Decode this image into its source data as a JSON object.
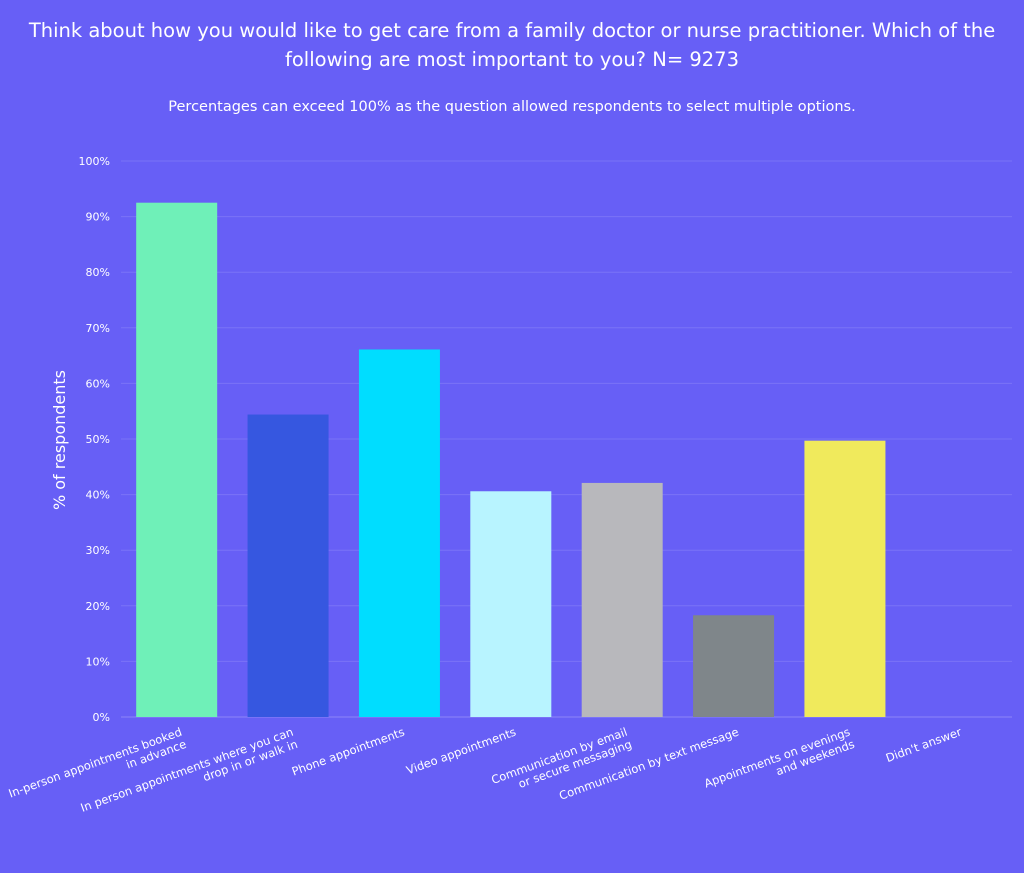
{
  "chart_data": {
    "type": "bar",
    "title": "Think about how you would like to get care from a family doctor or nurse practitioner. Which of the following are most important to you? N= 9273",
    "subtitle": "Percentages can exceed 100% as the question allowed respondents to select multiple options.",
    "xlabel": "",
    "ylabel": "% of respondents",
    "ylim": [
      0,
      100
    ],
    "yticks": [
      "0%",
      "10%",
      "20%",
      "30%",
      "40%",
      "50%",
      "60%",
      "70%",
      "80%",
      "90%",
      "100%"
    ],
    "grid": true,
    "legend": "none",
    "categories": [
      [
        "In-person appointments booked",
        "in advance"
      ],
      [
        "In person appointments where you can",
        "drop in or walk in"
      ],
      [
        "Phone appointments"
      ],
      [
        "Video appointments"
      ],
      [
        "Communication by email",
        "or secure messaging"
      ],
      [
        "Communication by text message"
      ],
      [
        "Appointments on evenings",
        "and weekends"
      ],
      [
        "Didn't answer"
      ]
    ],
    "values": [
      92.5,
      54.4,
      66.1,
      40.6,
      42.1,
      18.3,
      49.7,
      0
    ],
    "colors": [
      "#6ff0b8",
      "#3657e0",
      "#00ddff",
      "#b8f4ff",
      "#b8b8bc",
      "#7f868a",
      "#f0ea5c",
      "#675ff6"
    ]
  }
}
